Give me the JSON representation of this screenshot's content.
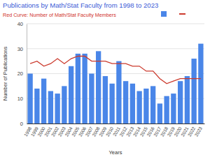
{
  "chart_data": {
    "type": "bar",
    "title": "Publications by Math/Stat Faculty from 1998 to 2023",
    "subtitle": "Red Curve: Number of Math/Stat Faculty Members",
    "x_label": "Years",
    "y_label": "Number of Publications",
    "categories": [
      "1998",
      "1999",
      "2000",
      "2001",
      "2002",
      "2003",
      "2004",
      "2005",
      "2006",
      "2007",
      "2008",
      "2009",
      "2010",
      "2011",
      "2012",
      "2013",
      "2014",
      "2015",
      "2016",
      "2017",
      "2018",
      "2019",
      "2020",
      "2021",
      "2022",
      "2023"
    ],
    "series": [
      {
        "type": "bar",
        "color": "#4a86e8",
        "values": [
          20,
          14,
          18,
          13,
          12,
          15,
          23,
          28,
          28,
          20,
          29,
          19,
          16,
          25,
          17,
          16,
          13,
          14,
          15,
          8,
          11,
          12,
          17,
          19,
          26,
          32
        ]
      },
      {
        "type": "line",
        "color": "#cc3b2e",
        "values": [
          24,
          25,
          23,
          24,
          26,
          24,
          26,
          27,
          27,
          25,
          25,
          25,
          24,
          24,
          24,
          23,
          23,
          21,
          21,
          18,
          16,
          17,
          18,
          18,
          18,
          18
        ]
      }
    ],
    "ylim": [
      0,
      40
    ],
    "yticks": [
      0,
      10,
      20,
      30,
      40
    ],
    "grid": true,
    "legend": "top-right"
  }
}
